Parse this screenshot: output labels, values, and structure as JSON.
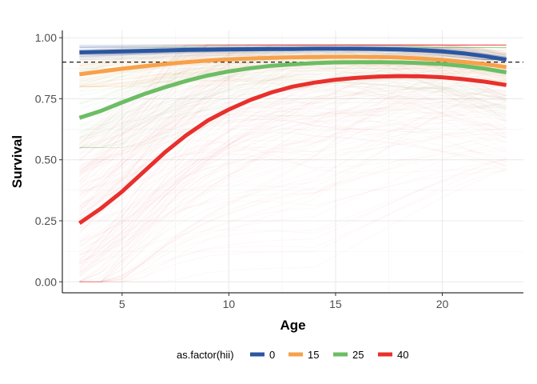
{
  "chart_data": {
    "type": "line",
    "xlabel": "Age",
    "ylabel": "Survival",
    "xlim": [
      2.2,
      23.8
    ],
    "ylim": [
      -0.045,
      1.03
    ],
    "x_ticks": [
      5,
      10,
      15,
      20
    ],
    "y_ticks": [
      0.0,
      0.25,
      0.5,
      0.75,
      1.0
    ],
    "x_tick_labels": [
      "5",
      "10",
      "15",
      "20"
    ],
    "y_tick_labels": [
      "0.00",
      "0.25",
      "0.50",
      "0.75",
      "1.00"
    ],
    "grid": true,
    "reference_line": {
      "y": 0.9,
      "style": "dashed"
    },
    "legend": {
      "title": "as.factor(hii)",
      "position": "bottom"
    },
    "x": [
      3,
      4,
      5,
      6,
      7,
      8,
      9,
      10,
      11,
      12,
      13,
      14,
      15,
      16,
      17,
      18,
      19,
      20,
      21,
      22,
      23
    ],
    "series": [
      {
        "name": "0",
        "color": "#2b56a0",
        "band": [
          0.91,
          0.97
        ],
        "values": [
          0.94,
          0.942,
          0.944,
          0.946,
          0.948,
          0.95,
          0.951,
          0.952,
          0.953,
          0.954,
          0.954,
          0.955,
          0.955,
          0.955,
          0.954,
          0.952,
          0.949,
          0.944,
          0.936,
          0.924,
          0.91
        ]
      },
      {
        "name": "15",
        "color": "#f7a14a",
        "band": [
          0.8,
          0.97
        ],
        "values": [
          0.85,
          0.862,
          0.873,
          0.883,
          0.892,
          0.9,
          0.906,
          0.911,
          0.915,
          0.918,
          0.92,
          0.921,
          0.922,
          0.922,
          0.921,
          0.919,
          0.915,
          0.909,
          0.901,
          0.892,
          0.88
        ]
      },
      {
        "name": "25",
        "color": "#6cbd64",
        "band": [
          0.55,
          0.96
        ],
        "values": [
          0.672,
          0.7,
          0.735,
          0.768,
          0.797,
          0.823,
          0.845,
          0.862,
          0.875,
          0.885,
          0.891,
          0.896,
          0.899,
          0.9,
          0.9,
          0.899,
          0.896,
          0.892,
          0.884,
          0.873,
          0.858
        ]
      },
      {
        "name": "40",
        "color": "#e8302c",
        "band": [
          0.0,
          0.97
        ],
        "values": [
          0.24,
          0.3,
          0.37,
          0.45,
          0.53,
          0.6,
          0.66,
          0.706,
          0.745,
          0.776,
          0.8,
          0.816,
          0.828,
          0.836,
          0.841,
          0.843,
          0.842,
          0.838,
          0.83,
          0.82,
          0.806
        ]
      }
    ]
  }
}
